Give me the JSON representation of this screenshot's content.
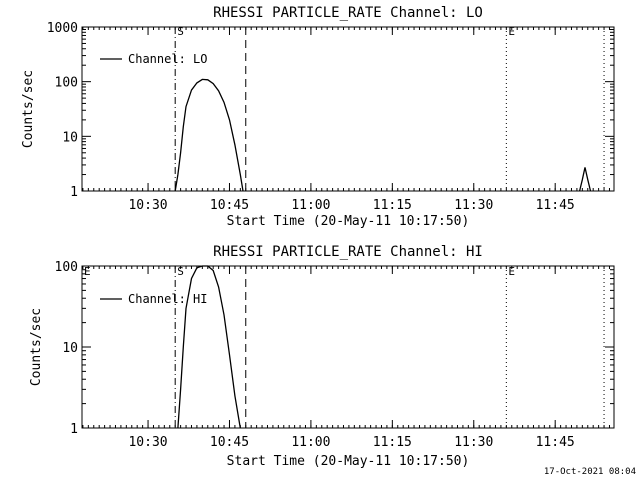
{
  "footer": {
    "timestamp": "17-Oct-2021 08:04"
  },
  "chart_data": [
    {
      "type": "line",
      "title": "RHESSI PARTICLE_RATE Channel: LO",
      "xlabel": "Start Time (20-May-11 10:17:50)",
      "ylabel": "Counts/sec",
      "yscale": "log",
      "ylim": [
        1,
        1000
      ],
      "xlim_minutes_from_start": [
        0,
        98
      ],
      "x_ticks": [
        "10:30",
        "10:45",
        "11:00",
        "11:15",
        "11:30",
        "11:45"
      ],
      "y_ticks": [
        "1",
        "10",
        "100",
        "1000"
      ],
      "legend": {
        "position": "top-left",
        "entries": [
          "Channel: LO"
        ]
      },
      "markers": [
        {
          "label": "S",
          "style": "dash-dot",
          "time": "10:35"
        },
        {
          "label": "",
          "style": "dashed",
          "time": "10:48"
        },
        {
          "label": "E",
          "style": "dotted",
          "time": "11:36"
        },
        {
          "label": "",
          "style": "dotted",
          "time": "11:54"
        }
      ],
      "series": [
        {
          "name": "Channel: LO",
          "x": [
            "10:35:00",
            "10:35:30",
            "10:36:00",
            "10:36:30",
            "10:37:00",
            "10:38:00",
            "10:39:00",
            "10:40:00",
            "10:41:00",
            "10:42:00",
            "10:43:00",
            "10:44:00",
            "10:45:00",
            "10:46:00",
            "10:47:00",
            "10:47:30"
          ],
          "y": [
            1,
            2,
            5,
            15,
            35,
            70,
            95,
            110,
            108,
            92,
            68,
            42,
            20,
            7,
            2,
            1
          ]
        },
        {
          "name": "",
          "x": [
            "11:49:30",
            "11:50:00",
            "11:50:30",
            "11:51:00",
            "11:51:30"
          ],
          "y": [
            1,
            1.6,
            2.7,
            1.6,
            1
          ]
        }
      ]
    },
    {
      "type": "line",
      "title": "RHESSI PARTICLE_RATE Channel: HI",
      "xlabel": "Start Time (20-May-11 10:17:50)",
      "ylabel": "Counts/sec",
      "yscale": "log",
      "ylim": [
        1,
        100
      ],
      "xlim_minutes_from_start": [
        0,
        98
      ],
      "x_ticks": [
        "10:30",
        "10:45",
        "11:00",
        "11:15",
        "11:30",
        "11:45"
      ],
      "y_ticks": [
        "1",
        "10",
        "100"
      ],
      "legend": {
        "position": "top-left",
        "entries": [
          "Channel: HI"
        ]
      },
      "markers": [
        {
          "label": "E",
          "style": "dotted",
          "time": "10:17:50"
        },
        {
          "label": "S",
          "style": "dash-dot",
          "time": "10:35"
        },
        {
          "label": "",
          "style": "dashed",
          "time": "10:48"
        },
        {
          "label": "E",
          "style": "dotted",
          "time": "11:36"
        },
        {
          "label": "",
          "style": "dotted",
          "time": "11:54"
        }
      ],
      "series": [
        {
          "name": "Channel: HI",
          "x": [
            "10:35:30",
            "10:36:00",
            "10:36:30",
            "10:37:00",
            "10:38:00",
            "10:39:00",
            "10:40:00",
            "10:41:00",
            "10:42:00",
            "10:43:00",
            "10:44:00",
            "10:45:00",
            "10:46:00",
            "10:47:00"
          ],
          "y": [
            1,
            3,
            10,
            30,
            70,
            95,
            100,
            100,
            88,
            55,
            25,
            8,
            2.5,
            1
          ]
        }
      ]
    }
  ]
}
